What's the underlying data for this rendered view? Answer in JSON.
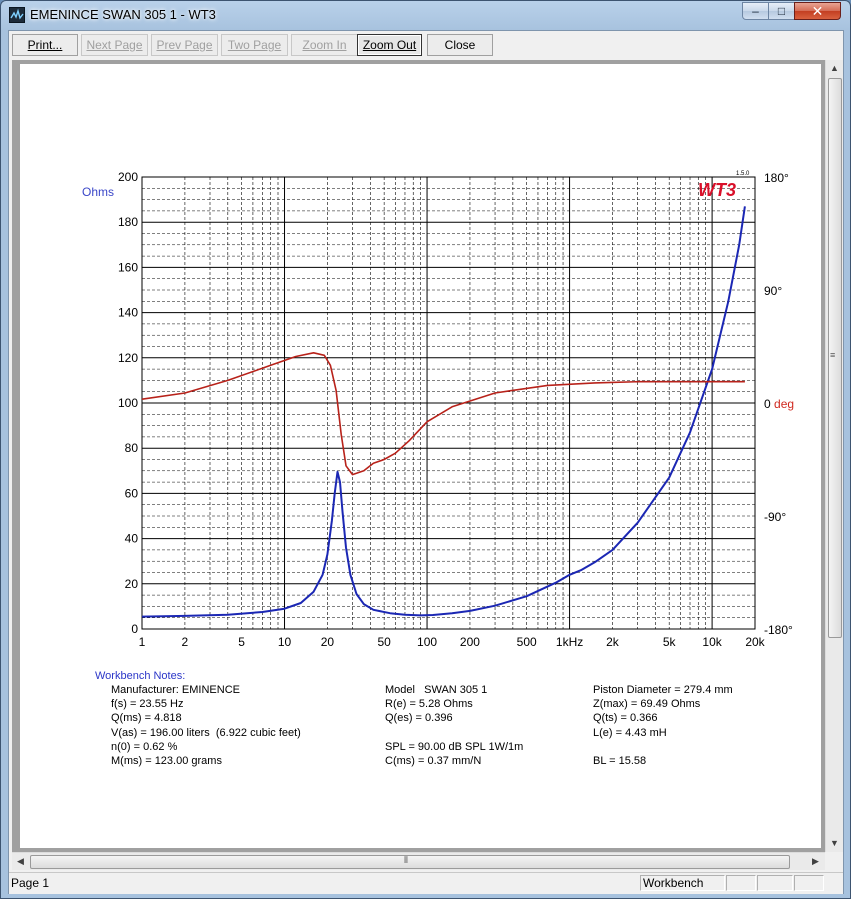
{
  "window": {
    "title": "EMENINCE SWAN 305 1 - WT3",
    "controls": {
      "minimize": "–",
      "maximize": "□",
      "close": "✕"
    }
  },
  "toolbar": {
    "buttons": [
      {
        "label": "Print...",
        "enabled": true
      },
      {
        "label": "Next Page",
        "enabled": false
      },
      {
        "label": "Prev Page",
        "enabled": false
      },
      {
        "label": "Two Page",
        "enabled": false
      },
      {
        "label": "Zoom In",
        "enabled": false
      },
      {
        "label": "Zoom Out",
        "enabled": true
      },
      {
        "label": "Close",
        "enabled": true
      }
    ]
  },
  "plot": {
    "logo": "WT3",
    "version": "1.5.0",
    "ylabel_left": "Ohms",
    "left_ticks": [
      "200",
      "180",
      "160",
      "140",
      "120",
      "100",
      "80",
      "60",
      "40",
      "20",
      "0"
    ],
    "right_ticks": [
      {
        "value": "180°"
      },
      {
        "value": "90°"
      },
      {
        "value": "0 ",
        "unit": "deg"
      },
      {
        "value": "-90°"
      },
      {
        "value": "-180°"
      }
    ],
    "x_ticks": [
      "1",
      "2",
      "5",
      "10",
      "20",
      "50",
      "100",
      "200",
      "500",
      "1kHz",
      "2k",
      "5k",
      "10k",
      "20k"
    ],
    "colors": {
      "impedance": "#1b27b4",
      "phase": "#b8221a",
      "ohms_label": "#3a46c8",
      "deg_label": "#d0281e",
      "logo": "#d9102a"
    }
  },
  "chart_data": {
    "type": "line",
    "x_scale": "log",
    "xlim": [
      1,
      20000
    ],
    "ylim": [
      0,
      200
    ],
    "ylim_right": [
      -180,
      180
    ],
    "grid": true,
    "series": [
      {
        "axis": "left",
        "points": [
          [
            1,
            5.5
          ],
          [
            2,
            5.8
          ],
          [
            4,
            6.3
          ],
          [
            7,
            7.5
          ],
          [
            10,
            9
          ],
          [
            13,
            11.5
          ],
          [
            16,
            16.5
          ],
          [
            18.5,
            24
          ],
          [
            20,
            33
          ],
          [
            21.5,
            48
          ],
          [
            22.5,
            60
          ],
          [
            23.55,
            69.5
          ],
          [
            24.5,
            65
          ],
          [
            25.5,
            52
          ],
          [
            27,
            36
          ],
          [
            29,
            24
          ],
          [
            32,
            15.5
          ],
          [
            36,
            11
          ],
          [
            42,
            8.5
          ],
          [
            55,
            7
          ],
          [
            70,
            6.3
          ],
          [
            90,
            6.0
          ],
          [
            110,
            6.2
          ],
          [
            150,
            7.0
          ],
          [
            200,
            8.0
          ],
          [
            300,
            10.3
          ],
          [
            500,
            14.5
          ],
          [
            800,
            20.5
          ],
          [
            1000,
            24
          ],
          [
            1200,
            26
          ],
          [
            1500,
            29.5
          ],
          [
            2000,
            35
          ],
          [
            3000,
            47
          ],
          [
            5000,
            67
          ],
          [
            7000,
            87
          ],
          [
            10000,
            115
          ],
          [
            13000,
            145
          ],
          [
            15500,
            170
          ],
          [
            17000,
            187
          ]
        ]
      },
      {
        "axis": "right",
        "points": [
          [
            1,
            3
          ],
          [
            2,
            8
          ],
          [
            4,
            18
          ],
          [
            8,
            30
          ],
          [
            12,
            37
          ],
          [
            16,
            40
          ],
          [
            19,
            38
          ],
          [
            21,
            30
          ],
          [
            23,
            10
          ],
          [
            25,
            -25
          ],
          [
            27,
            -50
          ],
          [
            30,
            -57
          ],
          [
            36,
            -54
          ],
          [
            42,
            -48
          ],
          [
            50,
            -45
          ],
          [
            60,
            -40
          ],
          [
            75,
            -30
          ],
          [
            100,
            -15
          ],
          [
            150,
            -3
          ],
          [
            300,
            8
          ],
          [
            700,
            14
          ],
          [
            1500,
            16
          ],
          [
            3000,
            17
          ],
          [
            10000,
            17
          ],
          [
            17000,
            17
          ]
        ]
      }
    ]
  },
  "notes": {
    "heading": "Workbench Notes:",
    "col1": [
      "Manufacturer: EMINENCE",
      "f(s) = 23.55 Hz",
      "Q(ms) = 4.818",
      "V(as) = 196.00 liters  (6.922 cubic feet)",
      "n(0) = 0.62 %",
      "M(ms) = 123.00 grams"
    ],
    "col2": [
      "Model   SWAN 305 1",
      "R(e) = 5.28 Ohms",
      "Q(es) = 0.396",
      "",
      "SPL = 90.00 dB SPL 1W/1m",
      "C(ms) = 0.37 mm/N"
    ],
    "col3": [
      "Piston Diameter = 279.4 mm",
      "Z(max) = 69.49 Ohms",
      "Q(ts) = 0.366",
      "L(e) = 4.43 mH",
      "",
      "BL = 15.58"
    ]
  },
  "status": {
    "page": "Page 1",
    "mode": "Workbench"
  }
}
